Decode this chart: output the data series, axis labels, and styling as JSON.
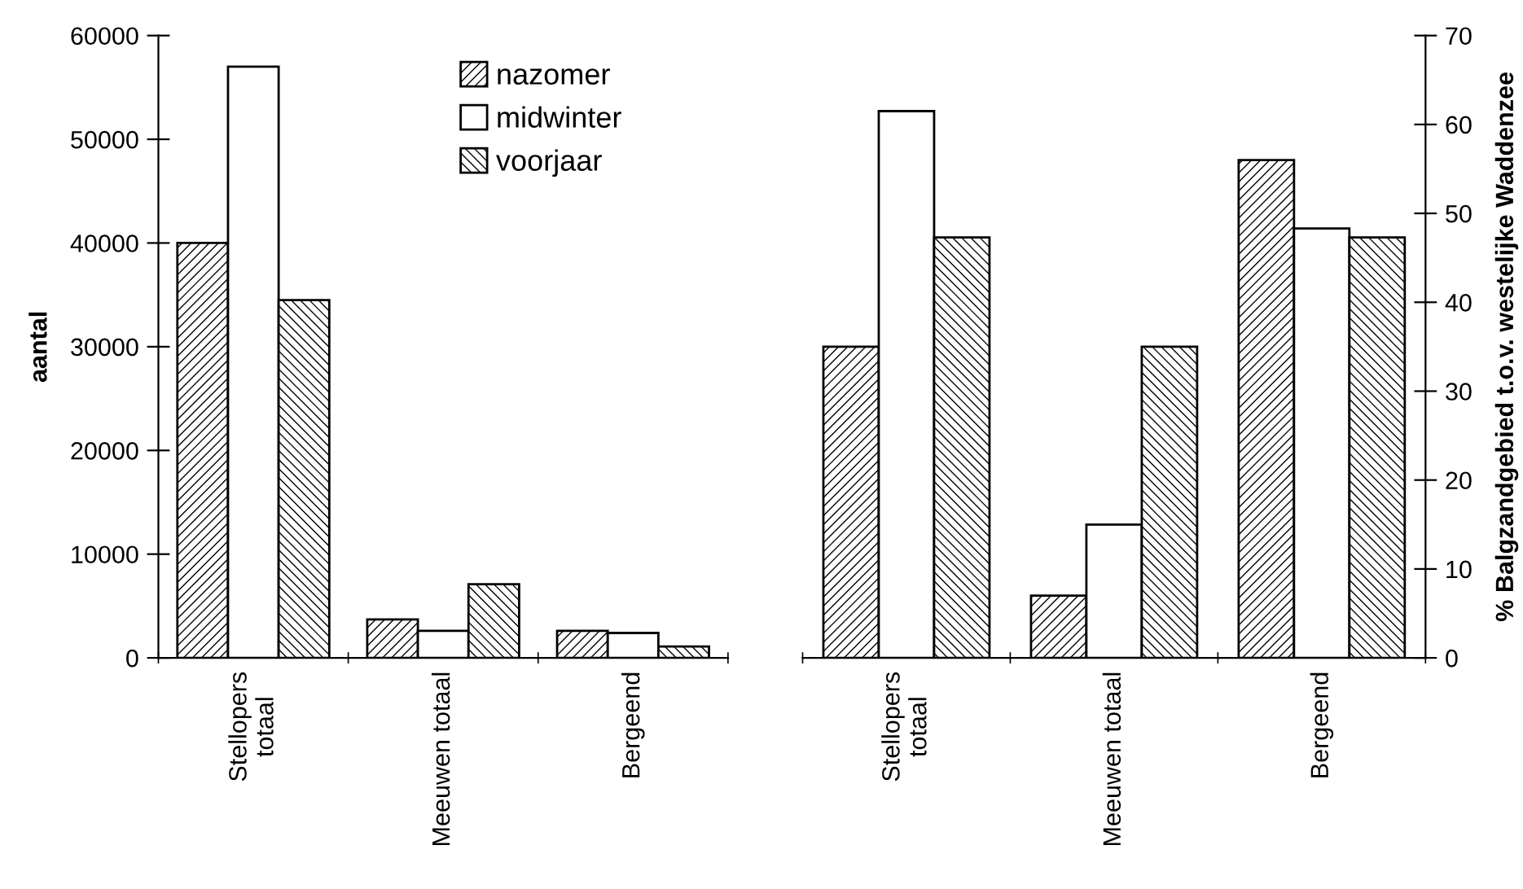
{
  "chart_data": [
    {
      "type": "bar",
      "ylabel": "aantal",
      "categories": [
        "Stellopers\ntotaal",
        "Meeuwen totaal",
        "Bergeend"
      ],
      "ylim": [
        0,
        60000
      ],
      "yticks": [
        0,
        10000,
        20000,
        30000,
        40000,
        50000,
        60000
      ],
      "grid": false,
      "legend": "top right",
      "series": [
        {
          "name": "nazomer",
          "color": "#000000",
          "values": [
            40000,
            3700,
            2600
          ]
        },
        {
          "name": "midwinter",
          "color": "#ffffff",
          "values": [
            57000,
            2600,
            2400
          ]
        },
        {
          "name": "voorjaar",
          "color": "#000000",
          "values": [
            34500,
            7100,
            1100
          ]
        }
      ]
    },
    {
      "type": "bar",
      "y2label": "% Balgzandgebied t.o.v. westelijke Waddenzee",
      "categories": [
        "Stellopers\ntotaal",
        "Meeuwen totaal",
        "Bergeend"
      ],
      "y2lim": [
        0,
        70
      ],
      "y2ticks": [
        0,
        10,
        20,
        30,
        40,
        50,
        60,
        70
      ],
      "grid": false,
      "series": [
        {
          "color": "#000000",
          "axis": "y2",
          "values": [
            35,
            7,
            56
          ]
        },
        {
          "color": "#ffffff",
          "axis": "y2",
          "values": [
            61.5,
            15,
            48.3
          ]
        },
        {
          "color": "#000000",
          "axis": "y2",
          "values": [
            47.3,
            35,
            47.3
          ]
        }
      ]
    }
  ]
}
